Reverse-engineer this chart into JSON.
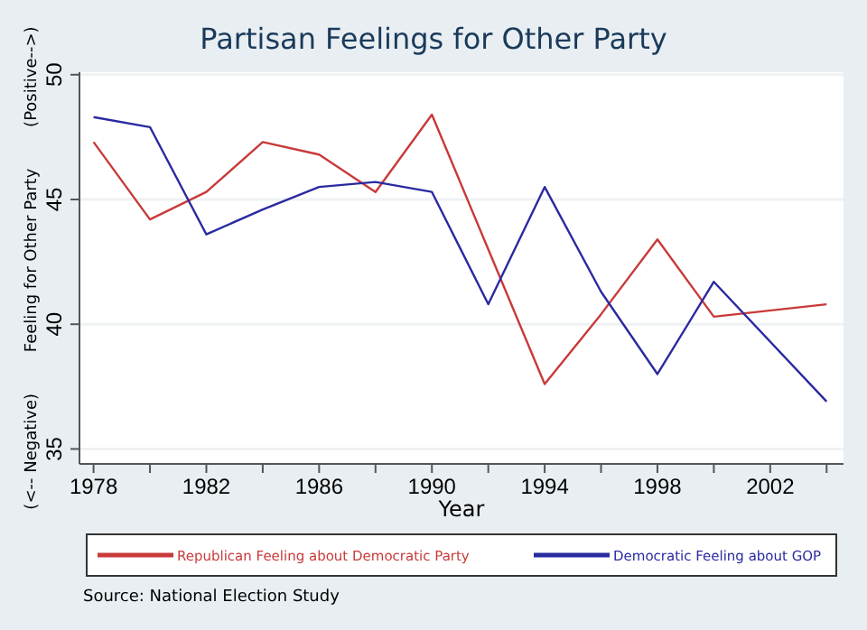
{
  "chart_data": {
    "type": "line",
    "title": "Partisan Feelings for Other Party",
    "xlabel": "Year",
    "ylabel": "(<-- Negative)        Feeling for Other Party        (Positive-->)",
    "x": [
      1978,
      1980,
      1982,
      1984,
      1986,
      1988,
      1990,
      1992,
      1994,
      1996,
      1998,
      2000,
      2004
    ],
    "series": [
      {
        "name": "Republican Feeling about Democratic Party",
        "color": "#c83a3a",
        "values": [
          47.3,
          44.2,
          45.3,
          47.3,
          46.8,
          45.3,
          48.4,
          43.0,
          37.6,
          40.4,
          43.4,
          40.3,
          40.8
        ]
      },
      {
        "name": "Democratic Feeling about GOP",
        "color": "#2a2aa0",
        "values": [
          48.3,
          47.9,
          43.6,
          44.6,
          45.5,
          45.7,
          45.3,
          40.8,
          45.5,
          41.3,
          38.0,
          41.7,
          36.9
        ]
      }
    ],
    "xlim": [
      1977.5,
      2004.6
    ],
    "ylim": [
      34.4,
      50.1
    ],
    "xticks": [
      1978,
      {
        "value": 1980,
        "label": null
      },
      1982,
      {
        "value": 1984,
        "label": null
      },
      1986,
      {
        "value": 1988,
        "label": null
      },
      1990,
      {
        "value": 1992,
        "label": null
      },
      1994,
      {
        "value": 1996,
        "label": null
      },
      1998,
      {
        "value": 2000,
        "label": null
      },
      2002,
      {
        "value": 2004,
        "label": null
      }
    ],
    "yticks": [
      35,
      40,
      45,
      50
    ],
    "grid": "y",
    "legend": "bottom",
    "marker": "none",
    "line_style": "solid",
    "annotations": [
      "Source: National Election Study"
    ]
  }
}
